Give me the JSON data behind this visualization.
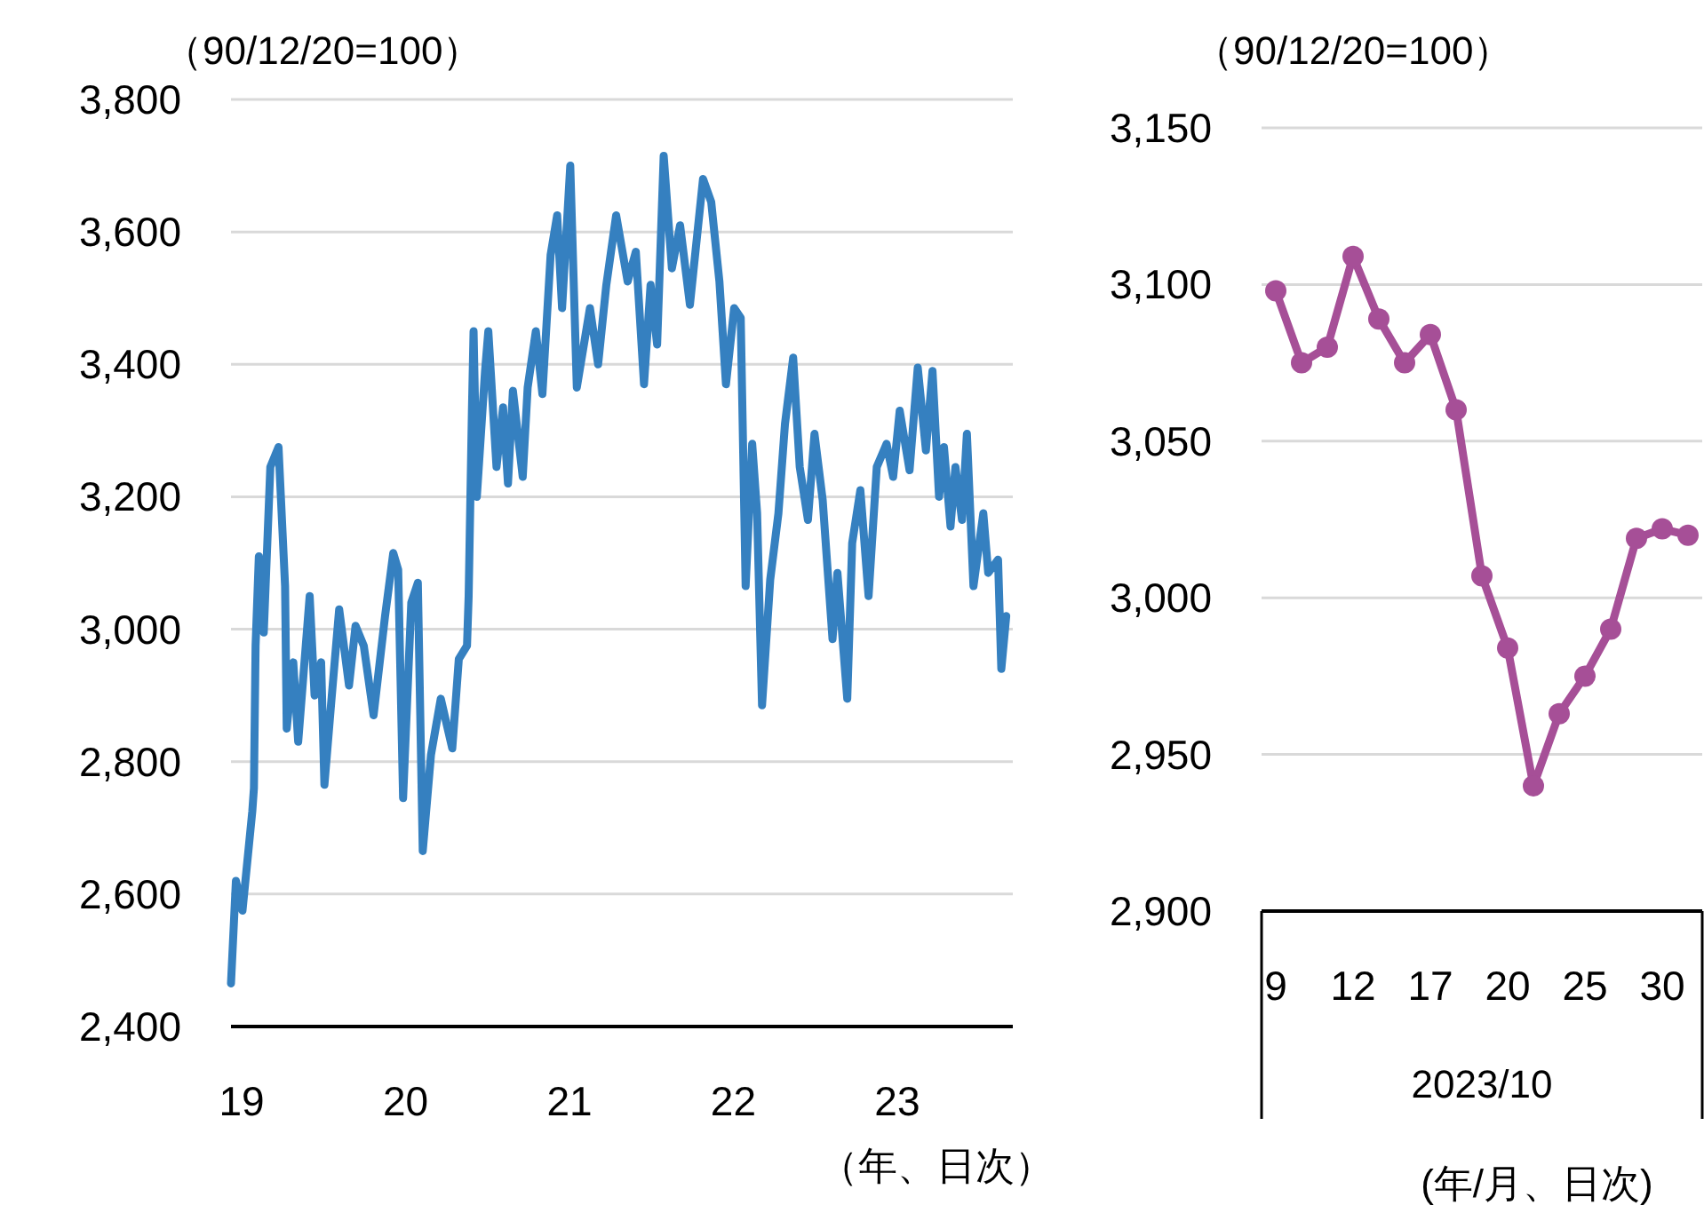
{
  "chart_data": [
    {
      "type": "line",
      "ylabel": "（90/12/20=100）",
      "xlabel": "（年、日次）",
      "x": [
        2019.0,
        2019.03,
        2019.07,
        2019.13,
        2019.14,
        2019.15,
        2019.17,
        2019.2,
        2019.24,
        2019.29,
        2019.33,
        2019.34,
        2019.38,
        2019.41,
        2019.48,
        2019.51,
        2019.55,
        2019.57,
        2019.61,
        2019.66,
        2019.72,
        2019.76,
        2019.81,
        2019.87,
        2019.94,
        2019.99,
        2020.02,
        2020.05,
        2020.1,
        2020.14,
        2020.17,
        2020.22,
        2020.28,
        2020.35,
        2020.39,
        2020.44,
        2020.45,
        2020.47,
        2020.48,
        2020.5,
        2020.55,
        2020.57,
        2020.62,
        2020.66,
        2020.69,
        2020.72,
        2020.78,
        2020.81,
        2020.86,
        2020.9,
        2020.95,
        2020.99,
        2021.02,
        2021.07,
        2021.11,
        2021.19,
        2021.24,
        2021.29,
        2021.35,
        2021.42,
        2021.47,
        2021.52,
        2021.56,
        2021.6,
        2021.64,
        2021.69,
        2021.74,
        2021.8,
        2021.88,
        2021.93,
        2021.98,
        2022.02,
        2022.07,
        2022.11,
        2022.14,
        2022.18,
        2022.21,
        2022.24,
        2022.29,
        2022.34,
        2022.38,
        2022.43,
        2022.47,
        2022.52,
        2022.56,
        2022.61,
        2022.67,
        2022.7,
        2022.76,
        2022.79,
        2022.84,
        2022.89,
        2022.94,
        2023.0,
        2023.04,
        2023.08,
        2023.14,
        2023.19,
        2023.24,
        2023.28,
        2023.32,
        2023.35,
        2023.39,
        2023.42,
        2023.46,
        2023.49,
        2023.53,
        2023.59,
        2023.62,
        2023.68,
        2023.7,
        2023.73
      ],
      "series": [
        {
          "color": "#3580c0",
          "values": [
            2465,
            2620,
            2575,
            2725,
            2760,
            2975,
            3110,
            2995,
            3245,
            3275,
            3065,
            2850,
            2950,
            2830,
            3050,
            2900,
            2950,
            2765,
            2885,
            3030,
            2915,
            3005,
            2975,
            2870,
            3020,
            3115,
            3090,
            2745,
            3040,
            3070,
            2665,
            2810,
            2895,
            2820,
            2955,
            2975,
            3050,
            3330,
            3450,
            3200,
            3390,
            3450,
            3245,
            3335,
            3220,
            3360,
            3230,
            3365,
            3450,
            3355,
            3565,
            3625,
            3485,
            3700,
            3365,
            3485,
            3400,
            3520,
            3625,
            3525,
            3570,
            3370,
            3520,
            3430,
            3715,
            3545,
            3610,
            3490,
            3680,
            3645,
            3525,
            3370,
            3485,
            3470,
            3065,
            3280,
            3175,
            2885,
            3075,
            3175,
            3310,
            3410,
            3245,
            3165,
            3295,
            3195,
            2985,
            3085,
            2895,
            3130,
            3210,
            3050,
            3245,
            3280,
            3230,
            3330,
            3240,
            3395,
            3270,
            3390,
            3200,
            3275,
            3155,
            3245,
            3165,
            3295,
            3065,
            3175,
            3085,
            3105,
            2940,
            3020
          ]
        }
      ],
      "xlim": [
        2019,
        2023.77
      ],
      "xticks": [
        {
          "value": 2019,
          "label": "19"
        },
        {
          "value": 2020,
          "label": "20"
        },
        {
          "value": 2021,
          "label": "21"
        },
        {
          "value": 2022,
          "label": "22"
        },
        {
          "value": 2023,
          "label": "23"
        }
      ],
      "ylim": [
        2400,
        3800
      ],
      "yticks": [
        {
          "value": 2400,
          "label": "2,400"
        },
        {
          "value": 2600,
          "label": "2,600"
        },
        {
          "value": 2800,
          "label": "2,800"
        },
        {
          "value": 3000,
          "label": "3,000"
        },
        {
          "value": 3200,
          "label": "3,200"
        },
        {
          "value": 3400,
          "label": "3,400"
        },
        {
          "value": 3600,
          "label": "3,600"
        },
        {
          "value": 3800,
          "label": "3,800"
        }
      ],
      "grid": "y"
    },
    {
      "type": "line",
      "ylabel": "（90/12/20=100）",
      "xlabel": "2023/10",
      "annotations": [
        "(年/月、日次)"
      ],
      "categories": [
        "9",
        null,
        null,
        "12",
        null,
        null,
        "17",
        null,
        null,
        "20",
        null,
        null,
        "25",
        null,
        null,
        "30",
        null
      ],
      "series": [
        {
          "color": "#a64f97",
          "values": [
            3098,
            3075,
            3080,
            3109,
            3089,
            3075,
            3084,
            3060,
            3007,
            2984,
            2940,
            2963,
            2975,
            2990,
            3019,
            3022,
            3020
          ]
        }
      ],
      "marker": "circle",
      "ylim": [
        2900,
        3150
      ],
      "yticks": [
        {
          "value": 2900,
          "label": "2,900"
        },
        {
          "value": 2950,
          "label": "2,950"
        },
        {
          "value": 3000,
          "label": "3,000"
        },
        {
          "value": 3050,
          "label": "3,050"
        },
        {
          "value": 3100,
          "label": "3,100"
        },
        {
          "value": 3150,
          "label": "3,150"
        }
      ],
      "grid": "y"
    }
  ]
}
